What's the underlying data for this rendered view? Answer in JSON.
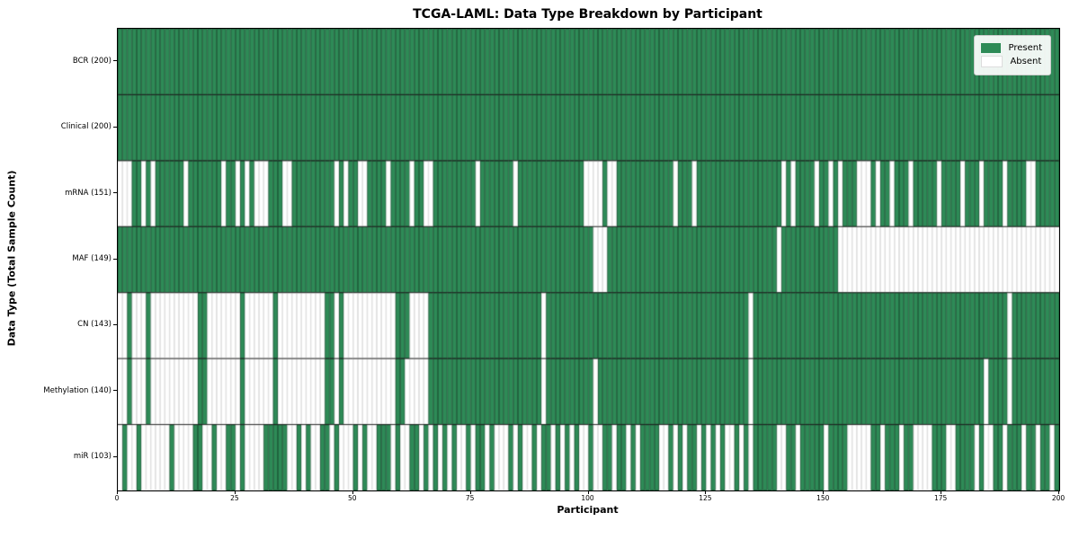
{
  "title": "TCGA-LAML: Data Type Breakdown by Participant",
  "chart_data": {
    "type": "heatmap",
    "title": "TCGA-LAML: Data Type Breakdown by Participant",
    "xlabel": "Participant",
    "ylabel": "Data Type (Total Sample Count)",
    "x_range": [
      0,
      200
    ],
    "x_ticks": [
      0,
      25,
      50,
      75,
      100,
      125,
      150,
      175,
      200
    ],
    "grid": "cell-borders",
    "legend": {
      "position": "upper right",
      "entries": [
        {
          "label": "Present",
          "color": "#2e8b57"
        },
        {
          "label": "Absent",
          "color": "#ffffff"
        }
      ]
    },
    "colors": {
      "present": "#2e8b57",
      "absent": "#ffffff",
      "cell_edge_on_green": "rgba(15,40,25,0.55)",
      "cell_edge_on_white": "rgba(0,0,0,0.16)",
      "row_divider": "#1a1a1a",
      "spine": "#000000"
    },
    "pattern_key": "each pattern string: index = participant 0-199, 1 = Present, 0 = Absent",
    "rows": [
      {
        "label": "BCR (200)",
        "data_type": "BCR",
        "present_count": 200,
        "pattern": [
          "1111111111",
          "1111111111",
          "1111111111",
          "1111111111",
          "1111111111",
          "1111111111",
          "1111111111",
          "1111111111",
          "1111111111",
          "1111111111",
          "1111111111",
          "1111111111",
          "1111111111",
          "1111111111",
          "1111111111",
          "1111111111",
          "1111111111",
          "1111111111",
          "1111111111",
          "1111111111"
        ]
      },
      {
        "label": "Clinical (200)",
        "data_type": "Clinical",
        "present_count": 200,
        "pattern": [
          "1111111111",
          "1111111111",
          "1111111111",
          "1111111111",
          "1111111111",
          "1111111111",
          "1111111111",
          "1111111111",
          "1111111111",
          "1111111111",
          "1111111111",
          "1111111111",
          "1111111111",
          "1111111111",
          "1111111111",
          "1111111111",
          "1111111111",
          "1111111111",
          "1111111111",
          "1111111111"
        ]
      },
      {
        "label": "mRNA (151)",
        "data_type": "mRNA",
        "present_count": 151,
        "pattern": [
          "0001101011",
          "1111011111",
          "1101101010",
          "0011100111",
          "1111110101",
          "1001111011",
          "1101100111",
          "1111110111",
          "1111011111",
          "1111111110",
          "0001001111",
          "1111111101",
          "1101111111",
          "1111111111",
          "1010111101",
          "1010111000",
          "1011011101",
          "1111011110",
          "1110111101",
          "1110011111"
        ]
      },
      {
        "label": "MAF (149)",
        "data_type": "MAF",
        "present_count": 149,
        "pattern": [
          "1111111111",
          "1111111111",
          "1111111111",
          "1111111111",
          "1111111111",
          "1111111111",
          "1111111111",
          "1111111111",
          "1111111111",
          "1111111111",
          "1000111111",
          "1111111111",
          "1111111111",
          "1111111111",
          "0111111111",
          "1110000000",
          "0000000000",
          "0000000000",
          "0000000000",
          "0000000000"
        ]
      },
      {
        "label": "CN (143)",
        "data_type": "CN",
        "present_count": 143,
        "pattern": [
          "0010001000",
          "0000000110",
          "0000001000",
          "0001000000",
          "0000110100",
          "0000000001",
          "1100001111",
          "1111111111",
          "1111111111",
          "0111111111",
          "1111111111",
          "1111111111",
          "1111111111",
          "1111011111",
          "1111111111",
          "1111111111",
          "1111111111",
          "1111111111",
          "1111111110",
          "1111111111"
        ]
      },
      {
        "label": "Methylation (140)",
        "data_type": "Methylation",
        "present_count": 140,
        "pattern": [
          "0010001000",
          "0000000110",
          "0000001000",
          "0001000000",
          "0000110100",
          "0000000001",
          "1000001111",
          "1111111111",
          "1111111111",
          "0111111111",
          "1011111111",
          "1111111111",
          "1111111111",
          "1111011111",
          "1111111111",
          "1111111111",
          "1111111111",
          "1111111111",
          "1111011110",
          "1111111111"
        ]
      },
      {
        "label": "miR (103)",
        "data_type": "miR",
        "present_count": 103,
        "pattern": [
          "0100100000",
          "0100001100",
          "1001101000",
          "0111110010",
          "1001101000",
          "1010011101",
          "0011010101",
          "0100101101",
          "0001010010",
          "1101010100",
          "1001101101",
          "0111100101",
          "0110101010",
          "0101011111",
          "0011011111",
          "0111100000",
          "1101110110",
          "0001110011",
          "1101001101",
          "1101101101"
        ]
      }
    ]
  }
}
